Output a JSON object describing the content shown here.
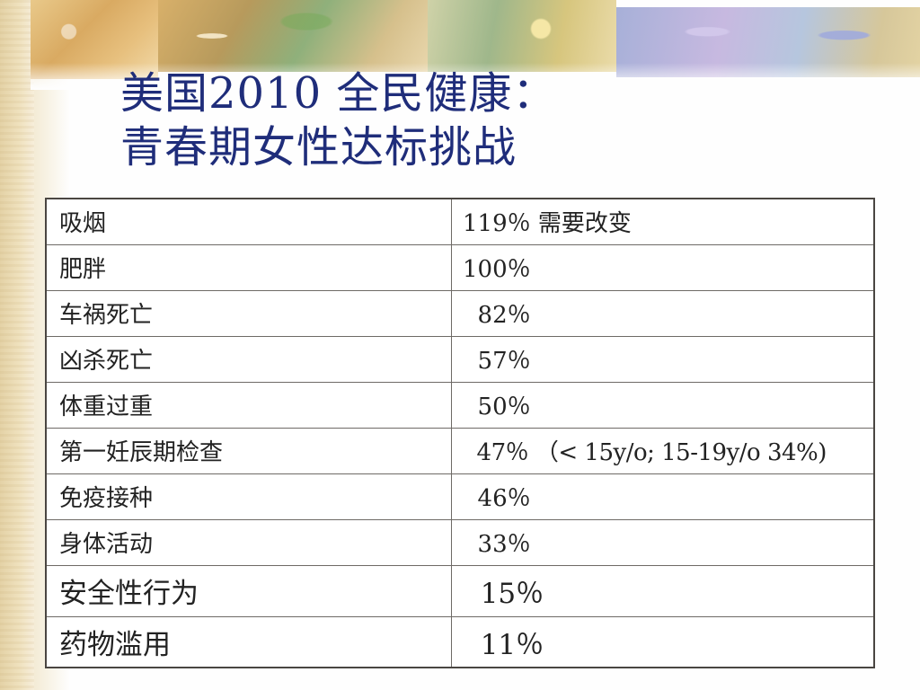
{
  "slide": {
    "title_line1": "美国2010 全民健康：",
    "title_line2": "青春期女性达标挑战"
  },
  "table": {
    "rows": [
      {
        "label": "吸烟",
        "value": "119％ 需要改变"
      },
      {
        "label": "肥胖",
        "value": "100％"
      },
      {
        "label": "车祸死亡",
        "value": "  82％"
      },
      {
        "label": "凶杀死亡",
        "value": "  57％"
      },
      {
        "label": "体重过重",
        "value": "  50％"
      },
      {
        "label": "第一妊辰期检查",
        "value": "  47％ （< 15y/o; 15-19y/o 34%)"
      },
      {
        "label": "免疫接种",
        "value": "  46％"
      },
      {
        "label": "身体活动",
        "value": "  33％"
      },
      {
        "label": "安全性行为",
        "value": "  15％"
      },
      {
        "label": "药物滥用",
        "value": "  11％"
      }
    ]
  },
  "colors": {
    "title": "#1f2d7a",
    "table_border": "#4a4642",
    "text": "#222222"
  }
}
